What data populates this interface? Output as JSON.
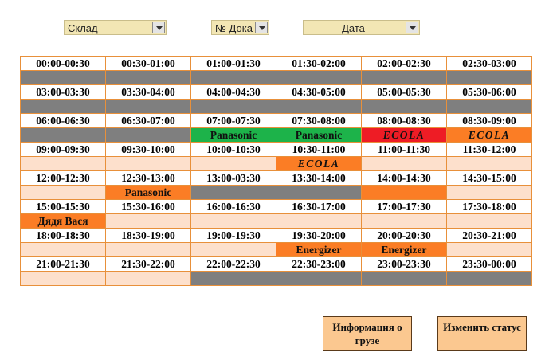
{
  "filters": [
    {
      "label": "Склад"
    },
    {
      "label": "№ Дока"
    },
    {
      "label": "Дата"
    }
  ],
  "schedule": {
    "rows": [
      {
        "times": [
          "00:00-00:30",
          "00:30-01:00",
          "01:00-01:30",
          "01:30-02:00",
          "02:00-02:30",
          "02:30-03:00"
        ],
        "slots": [
          {
            "s": "gray",
            "t": ""
          },
          {
            "s": "gray",
            "t": ""
          },
          {
            "s": "gray",
            "t": ""
          },
          {
            "s": "gray",
            "t": ""
          },
          {
            "s": "gray",
            "t": ""
          },
          {
            "s": "gray",
            "t": ""
          }
        ]
      },
      {
        "times": [
          "03:00-03:30",
          "03:30-04:00",
          "04:00-04:30",
          "04:30-05:00",
          "05:00-05:30",
          "05:30-06:00"
        ],
        "slots": [
          {
            "s": "gray",
            "t": ""
          },
          {
            "s": "gray",
            "t": ""
          },
          {
            "s": "gray",
            "t": ""
          },
          {
            "s": "gray",
            "t": ""
          },
          {
            "s": "gray",
            "t": ""
          },
          {
            "s": "gray",
            "t": ""
          }
        ]
      },
      {
        "times": [
          "06:00-06:30",
          "06:30-07:00",
          "07:00-07:30",
          "07:30-08:00",
          "08:00-08:30",
          "08:30-09:00"
        ],
        "slots": [
          {
            "s": "gray",
            "t": ""
          },
          {
            "s": "gray",
            "t": ""
          },
          {
            "s": "green",
            "t": "Panasonic"
          },
          {
            "s": "green",
            "t": "Panasonic"
          },
          {
            "s": "red",
            "t": "ECOLA"
          },
          {
            "s": "orange",
            "t": "ECOLA"
          }
        ]
      },
      {
        "times": [
          "09:00-09:30",
          "09:30-10:00",
          "10:00-10:30",
          "10:30-11:00",
          "11:00-11:30",
          "11:30-12:00"
        ],
        "slots": [
          {
            "s": "empty",
            "t": ""
          },
          {
            "s": "empty",
            "t": ""
          },
          {
            "s": "empty",
            "t": ""
          },
          {
            "s": "orange",
            "t": "ECOLA"
          },
          {
            "s": "empty",
            "t": ""
          },
          {
            "s": "empty",
            "t": ""
          }
        ]
      },
      {
        "times": [
          "12:00-12:30",
          "12:30-13:00",
          "13:00-03:30",
          "13:30-14:00",
          "14:00-14:30",
          "14:30-15:00"
        ],
        "slots": [
          {
            "s": "empty",
            "t": ""
          },
          {
            "s": "orange",
            "t": "Panasonic"
          },
          {
            "s": "gray",
            "t": ""
          },
          {
            "s": "gray",
            "t": ""
          },
          {
            "s": "orange",
            "t": ""
          },
          {
            "s": "empty",
            "t": ""
          }
        ]
      },
      {
        "times": [
          "15:00-15:30",
          "15:30-16:00",
          "16:00-16:30",
          "16:30-17:00",
          "17:00-17:30",
          "17:30-18:00"
        ],
        "slots": [
          {
            "s": "orange",
            "t": "Дядя Вася"
          },
          {
            "s": "empty",
            "t": ""
          },
          {
            "s": "empty",
            "t": ""
          },
          {
            "s": "empty",
            "t": ""
          },
          {
            "s": "empty",
            "t": ""
          },
          {
            "s": "empty",
            "t": ""
          }
        ]
      },
      {
        "times": [
          "18:00-18:30",
          "18:30-19:00",
          "19:00-19:30",
          "19:30-20:00",
          "20:00-20:30",
          "20:30-21:00"
        ],
        "slots": [
          {
            "s": "empty",
            "t": ""
          },
          {
            "s": "empty",
            "t": ""
          },
          {
            "s": "empty",
            "t": ""
          },
          {
            "s": "orange",
            "t": "Energizer"
          },
          {
            "s": "orange",
            "t": "Energizer"
          },
          {
            "s": "empty",
            "t": ""
          }
        ]
      },
      {
        "times": [
          "21:00-21:30",
          "21:30-22:00",
          "22:00-22:30",
          "22:30-23:00",
          "23:00-23:30",
          "23:30-00:00"
        ],
        "slots": [
          {
            "s": "empty",
            "t": ""
          },
          {
            "s": "empty",
            "t": ""
          },
          {
            "s": "gray",
            "t": ""
          },
          {
            "s": "gray",
            "t": ""
          },
          {
            "s": "gray",
            "t": ""
          },
          {
            "s": "gray",
            "t": ""
          }
        ]
      }
    ]
  },
  "buttons": {
    "info": "Информация о грузе",
    "change_status": "Изменить статус"
  }
}
